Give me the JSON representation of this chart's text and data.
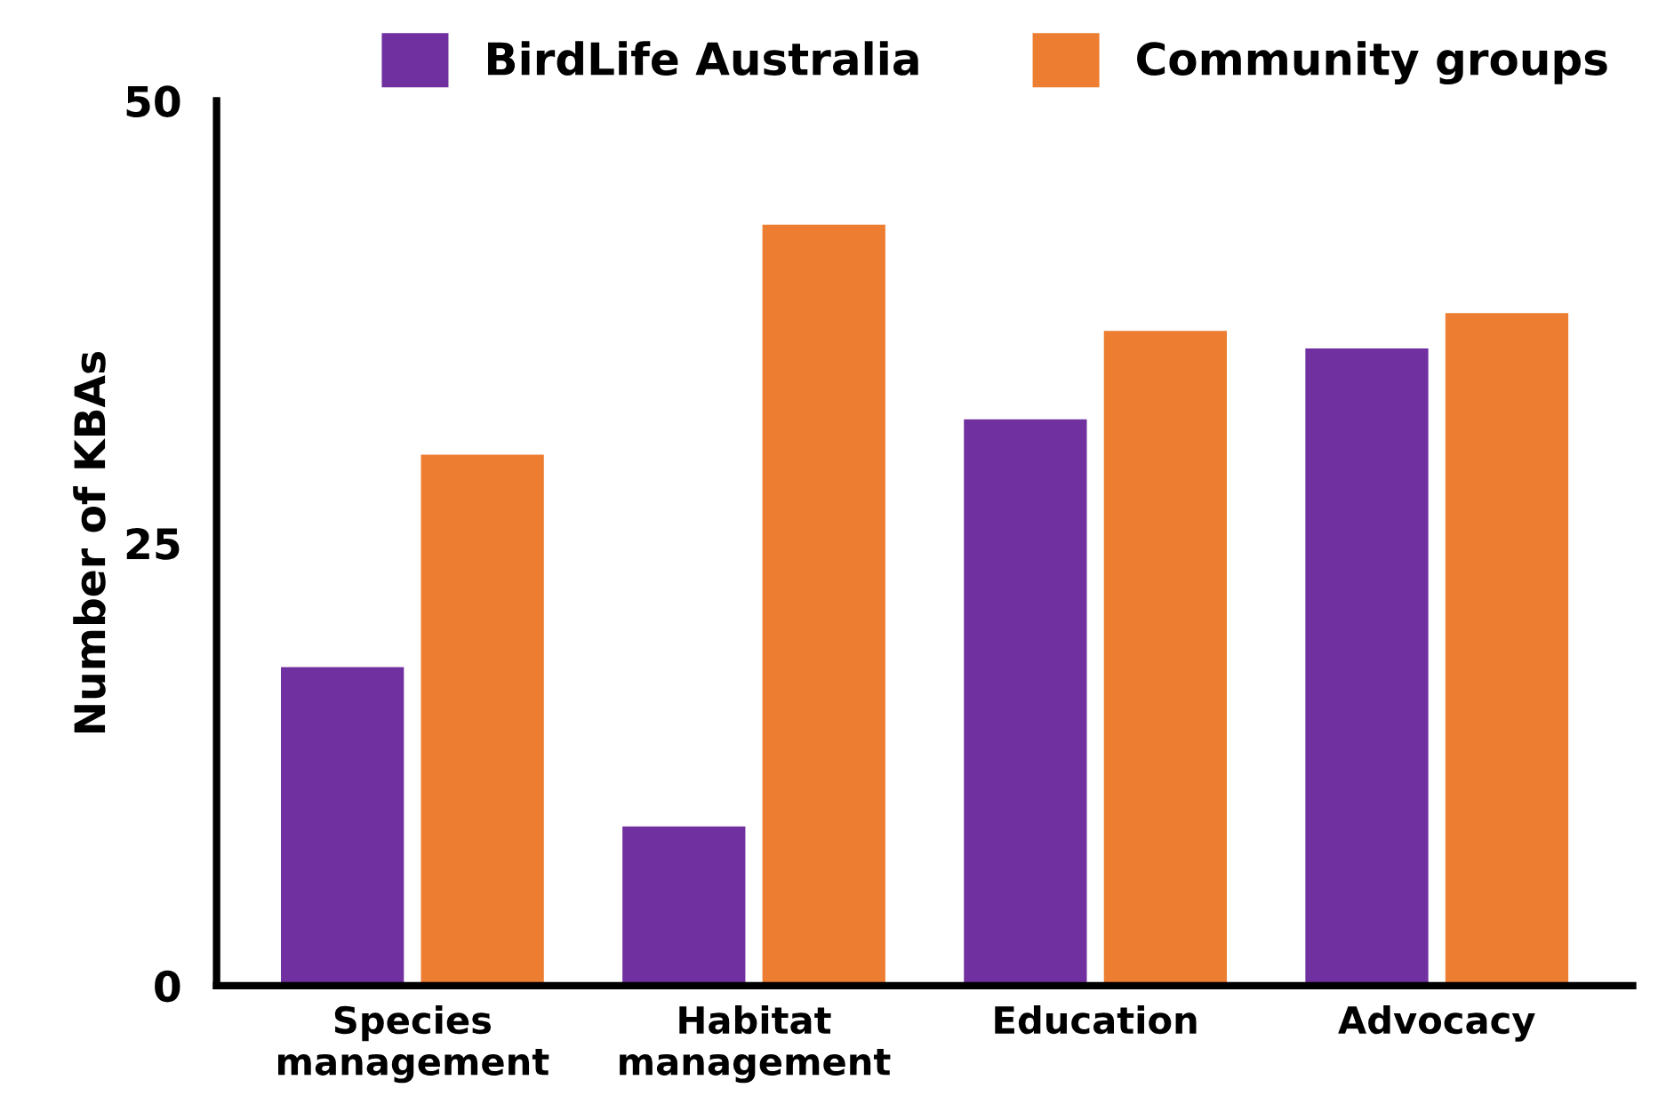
{
  "chart_data": {
    "type": "bar",
    "ylabel": "Number of KBAs",
    "categories": [
      "Species\nmanagement",
      "Habitat\nmanagement",
      "Education",
      "Advocacy"
    ],
    "series": [
      {
        "name": "BirdLife Australia",
        "color": "#7030a0",
        "values": [
          18,
          9,
          32,
          36
        ]
      },
      {
        "name": "Community groups",
        "color": "#ed7d31",
        "values": [
          30,
          43,
          37,
          38
        ]
      }
    ],
    "ylim": [
      0,
      50
    ],
    "yticks": [
      0,
      25,
      50
    ],
    "grid": false,
    "legend": "top"
  }
}
